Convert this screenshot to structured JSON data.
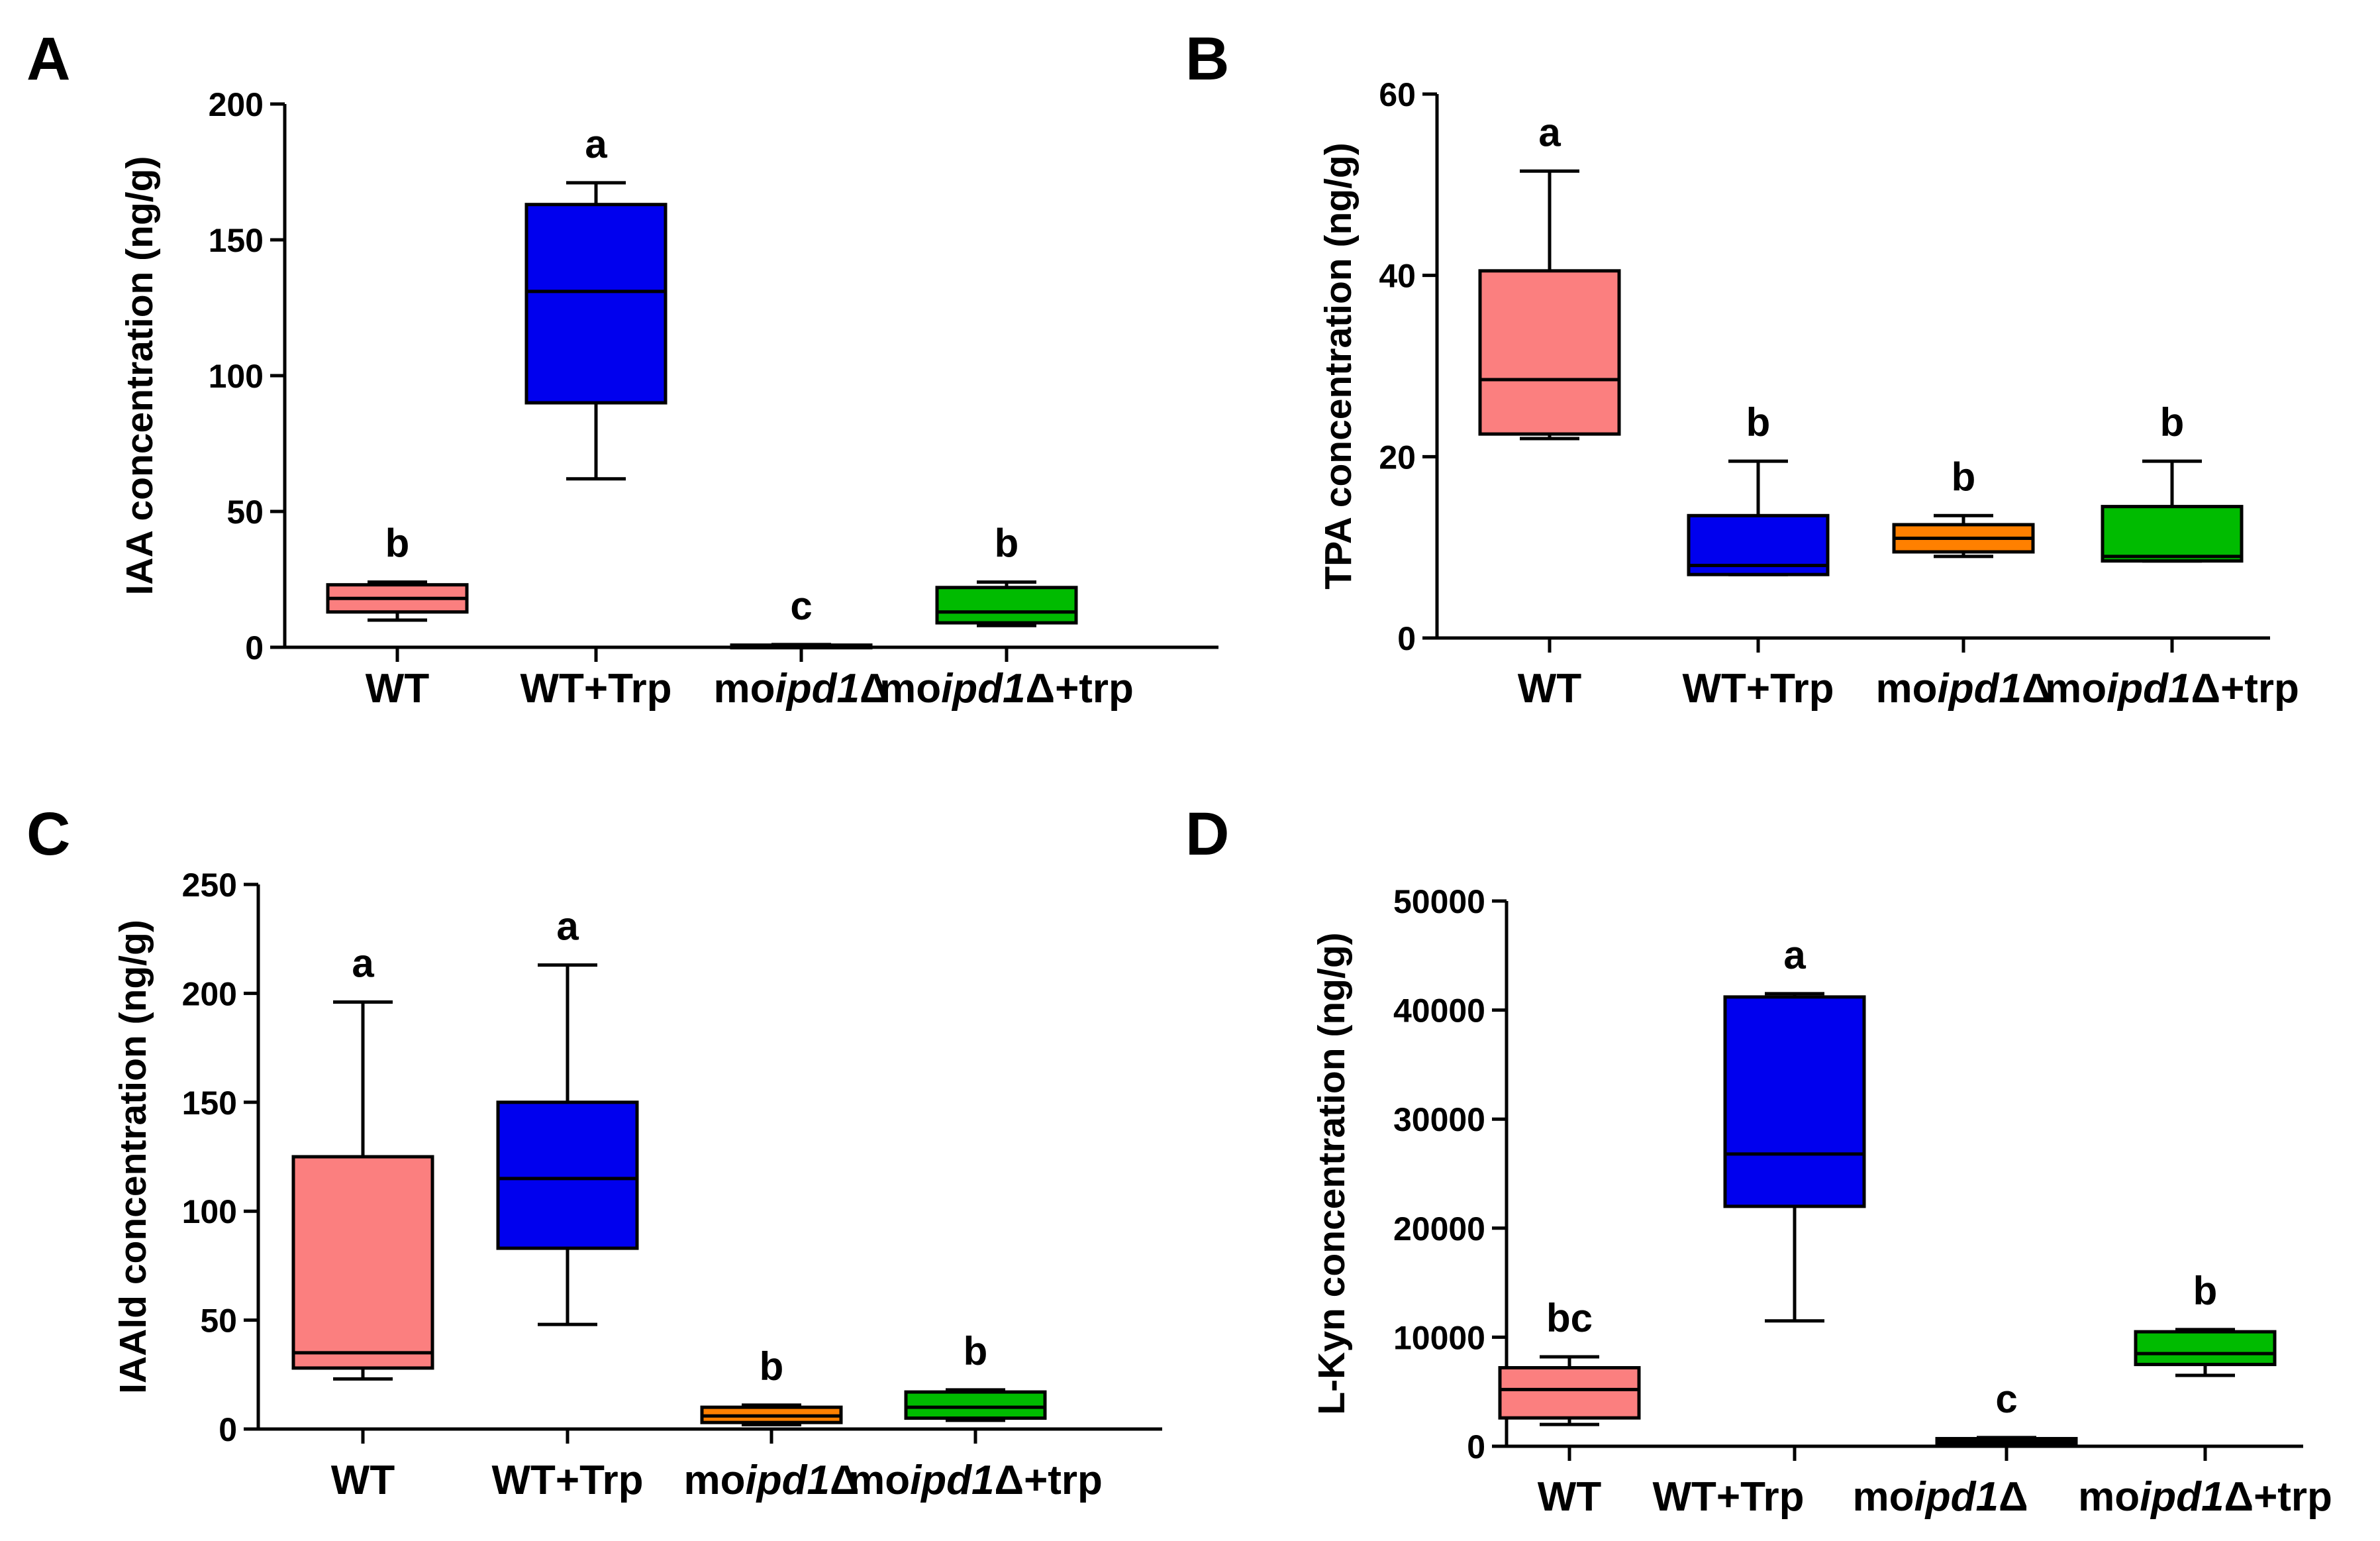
{
  "colors": {
    "wt": "#fb7f7f",
    "wt_trp": "#0000ee",
    "moipd1": "#ff8000",
    "moipd1_trp": "#00bb00",
    "axis": "#000000"
  },
  "categories": [
    {
      "prefix": "WT",
      "italic": "",
      "suffix": ""
    },
    {
      "prefix": "WT+Trp",
      "italic": "",
      "suffix": ""
    },
    {
      "prefix": "mo",
      "italic": "ipd1",
      "suffix": "Δ"
    },
    {
      "prefix": "mo",
      "italic": "ipd1",
      "suffix": "Δ+trp"
    }
  ],
  "chart_data": [
    {
      "type": "box",
      "panel": "A",
      "ylabel": "IAA concentration (ng/g)",
      "ylim": [
        0,
        200
      ],
      "yticks": [
        "0",
        "50",
        "100",
        "150",
        "200"
      ],
      "boxes": [
        {
          "min": 10,
          "q1": 13,
          "median": 18,
          "q3": 23,
          "max": 24,
          "letter": "b"
        },
        {
          "min": 62,
          "q1": 90,
          "median": 131,
          "q3": 163,
          "max": 171,
          "letter": "a"
        },
        {
          "min": 0.3,
          "q1": 0.4,
          "median": 0.6,
          "q3": 0.8,
          "max": 1,
          "letter": "c"
        },
        {
          "min": 8,
          "q1": 9,
          "median": 13,
          "q3": 22,
          "max": 24,
          "letter": "b"
        }
      ]
    },
    {
      "type": "box",
      "panel": "B",
      "ylabel": "TPA concentration (ng/g)",
      "ylim": [
        0,
        60
      ],
      "yticks": [
        "0",
        "20",
        "40",
        "60"
      ],
      "boxes": [
        {
          "min": 22,
          "q1": 22.5,
          "median": 28.5,
          "q3": 40.5,
          "max": 51.5,
          "letter": "a"
        },
        {
          "min": 7,
          "q1": 7,
          "median": 8,
          "q3": 13.5,
          "max": 19.5,
          "letter": "b"
        },
        {
          "min": 9,
          "q1": 9.5,
          "median": 11,
          "q3": 12.5,
          "max": 13.5,
          "letter": "b"
        },
        {
          "min": 8.5,
          "q1": 8.5,
          "median": 9,
          "q3": 14.5,
          "max": 19.5,
          "letter": "b"
        }
      ]
    },
    {
      "type": "box",
      "panel": "C",
      "ylabel": "IAAld concentration (ng/g)",
      "ylim": [
        0,
        250
      ],
      "yticks": [
        "0",
        "50",
        "100",
        "150",
        "200",
        "250"
      ],
      "boxes": [
        {
          "min": 23,
          "q1": 28,
          "median": 35,
          "q3": 125,
          "max": 196,
          "letter": "a"
        },
        {
          "min": 48,
          "q1": 83,
          "median": 115,
          "q3": 150,
          "max": 213,
          "letter": "a"
        },
        {
          "min": 2,
          "q1": 3,
          "median": 6,
          "q3": 10,
          "max": 11,
          "letter": "b"
        },
        {
          "min": 4,
          "q1": 5,
          "median": 10,
          "q3": 17,
          "max": 18,
          "letter": "b"
        }
      ]
    },
    {
      "type": "box",
      "panel": "D",
      "ylabel": "L-Kyn concentration (ng/g)",
      "ylim": [
        0,
        50000
      ],
      "yticks": [
        "0",
        "10000",
        "20000",
        "30000",
        "40000",
        "50000"
      ],
      "boxes": [
        {
          "min": 2000,
          "q1": 2600,
          "median": 5200,
          "q3": 7200,
          "max": 8200,
          "letter": "bc"
        },
        {
          "min": 11500,
          "q1": 22000,
          "median": 26800,
          "q3": 41200,
          "max": 41500,
          "letter": "a"
        },
        {
          "min": 100,
          "q1": 200,
          "median": 400,
          "q3": 700,
          "max": 800,
          "letter": "c"
        },
        {
          "min": 6500,
          "q1": 7500,
          "median": 8500,
          "q3": 10500,
          "max": 10700,
          "letter": "b"
        }
      ]
    }
  ]
}
